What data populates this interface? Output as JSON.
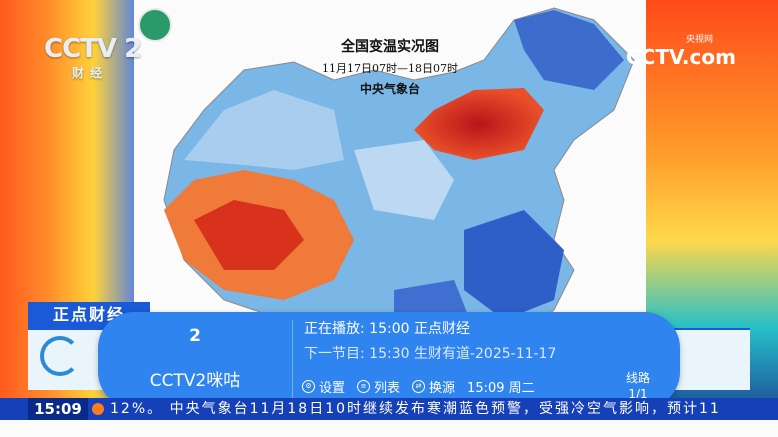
{
  "broadcast": {
    "left_logo": "CCTV 2",
    "left_logo_sub": "财经",
    "right_logo": "CCTV.com",
    "right_logo_sub": "央视网"
  },
  "map": {
    "title": "全国变温实况图",
    "time_range": "11月17日07时—18日07时",
    "agency": "中央气象台"
  },
  "program_banner": "正点财经",
  "overlay": {
    "channel_number": "2",
    "channel_name": "CCTV2咪咕",
    "now_playing": "正在播放: 15:00  正点财经",
    "next_program": "下一节目: 15:30  生财有道-2025-11-17",
    "controls": [
      {
        "label": "设置",
        "icon": "gear-icon"
      },
      {
        "label": "列表",
        "icon": "list-icon"
      },
      {
        "label": "换源",
        "icon": "switch-icon"
      }
    ],
    "time_day": "15:09 周二",
    "route_label": "线路",
    "route_value": "1/1"
  },
  "ticker": {
    "clock": "15:09",
    "text": "12%。  中央气象台11月18日10时继续发布寒潮蓝色预警，受强冷空气影响，预计11"
  },
  "colors": {
    "overlay_bg": "#2f84f0",
    "ticker_bg": "#1640b8",
    "banner_bg": "#1a5ad8"
  }
}
